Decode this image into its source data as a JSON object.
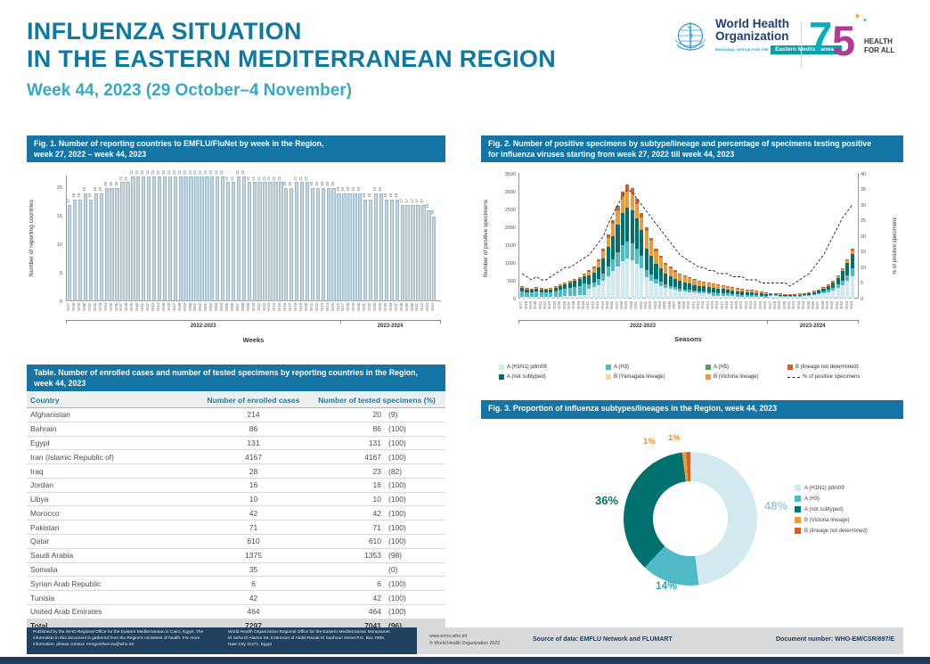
{
  "header": {
    "title_line1": "INFLUENZA SITUATION",
    "title_line2": "IN THE EASTERN MEDITERRANEAN REGION",
    "subtitle": "Week 44, 2023 (29 October–4 November)"
  },
  "logos": {
    "who_name_line1": "World Health",
    "who_name_line2": "Organization",
    "who_office_prefix": "REGIONAL OFFICE FOR THE",
    "who_office_region": "Eastern Mediterranean",
    "anniversary_number_7": "7",
    "anniversary_number_5": "5",
    "sparkle_glyph": "✦",
    "sparkle_glyph2": "✶",
    "anniversary_tagline_line1": "HEALTH",
    "anniversary_tagline_line2": "FOR ALL"
  },
  "fig1": {
    "header_line1": "Fig. 1. Number of reporting countries to EMFLU/FluNet by week in the Region,",
    "header_line2": "week 27, 2022 –  week 44, 2023"
  },
  "fig2": {
    "header_line1": "Fig. 2. Number of positive specimens by subtype/lineage and percentage of specimens testing positive",
    "header_line2": "for influenza viruses starting from week 27, 2022 till week 44, 2023"
  },
  "fig3": {
    "header": "Fig. 3. Proportion of influenza subtypes/lineages in the Region, week 44, 2023"
  },
  "table": {
    "header_line1": "Table. Number of enrolled cases and number of tested specimens by reporting countries in the Region,",
    "header_line2": "week 44, 2023",
    "columns": [
      "Country",
      "Number of enrolled cases",
      "Number of tested specimens (%)"
    ],
    "rows": [
      [
        "Afghanistan",
        "214",
        "20",
        "(9)"
      ],
      [
        "Bahrain",
        "86",
        "86",
        "(100)"
      ],
      [
        "Egypt",
        "131",
        "131",
        "(100)"
      ],
      [
        "Iran (Islamic Republic of)",
        "4167",
        "4167",
        "(100)"
      ],
      [
        "Iraq",
        "28",
        "23",
        "(82)"
      ],
      [
        "Jordan",
        "16",
        "16",
        "(100)"
      ],
      [
        "Libya",
        "10",
        "10",
        "(100)"
      ],
      [
        "Morocco",
        "42",
        "42",
        "(100)"
      ],
      [
        "Pakistan",
        "71",
        "71",
        "(100)"
      ],
      [
        "Qatar",
        "610",
        "610",
        "(100)"
      ],
      [
        "Saudi Arabia",
        "1375",
        "1353",
        "(98)"
      ],
      [
        "Somalia",
        "35",
        "",
        "(0)"
      ],
      [
        "Syrian Arab Republic",
        "6",
        "6",
        "(100)"
      ],
      [
        "Tunisia",
        "42",
        "42",
        "(100)"
      ],
      [
        "United Arab Emirates",
        "464",
        "464",
        "(100)"
      ]
    ],
    "total_row": [
      "Total",
      "7297",
      "7041",
      "(96)"
    ]
  },
  "footer": {
    "published": "Published by the WHO Regional Office for the Eastern Mediterranean in Cairo, Egypt. The information in this document is gathered from the Region's ministries of health. For more information, please contact: emrgoinfluenza@who.int",
    "address": "World Health Organization Regional Office for the Eastern Mediterranean Monazamet El Seha El Alamia Str, Extension of Abdel Razak El Sanhouri Street P.O. Box 7608, Nasr City 11371, Egypt",
    "website": "www.emro.who.int",
    "copyright": "© World Health Organization 2023",
    "source": "Source of data: EMFLU Network and FLUMART",
    "document_number": "Document number: WHO-EM/CSR/697/E"
  },
  "chart_data": [
    {
      "id": "fig1",
      "type": "bar",
      "title": "Fig. 1. Number of reporting countries to EMFLU/FluNet by week in the Region, week 27, 2022 – week 44, 2023",
      "xlabel": "Weeks",
      "ylabel": "Number of reporting countries",
      "ylim": [
        0,
        22
      ],
      "yticks": [
        0,
        5,
        10,
        15,
        20
      ],
      "season_labels": [
        "2022-2023",
        "2023-2024"
      ],
      "season_split_index": 52,
      "categories": [
        "W27",
        "W28",
        "W29",
        "W30",
        "W31",
        "W32",
        "W33",
        "W34",
        "W35",
        "W36",
        "W37",
        "W38",
        "W39",
        "W40",
        "W41",
        "W42",
        "W43",
        "W44",
        "W45",
        "W46",
        "W47",
        "W48",
        "W49",
        "W50",
        "W51",
        "W52",
        "W01",
        "W02",
        "W03",
        "W04",
        "W05",
        "W06",
        "W07",
        "W08",
        "W09",
        "W10",
        "W11",
        "W12",
        "W13",
        "W14",
        "W15",
        "W16",
        "W17",
        "W18",
        "W19",
        "W20",
        "W21",
        "W22",
        "W23",
        "W24",
        "W25",
        "W26",
        "W27",
        "W28",
        "W29",
        "W30",
        "W31",
        "W32",
        "W33",
        "W34",
        "W35",
        "W36",
        "W37",
        "W38",
        "W39",
        "W40",
        "W41",
        "W42",
        "W43",
        "W44"
      ],
      "values": [
        17,
        18,
        18,
        19,
        18,
        19,
        19,
        20,
        20,
        20,
        21,
        21,
        22,
        22,
        22,
        22,
        22,
        22,
        22,
        22,
        22,
        22,
        22,
        22,
        22,
        22,
        22,
        22,
        22,
        22,
        21,
        21,
        22,
        22,
        21,
        21,
        21,
        21,
        21,
        21,
        21,
        20,
        20,
        21,
        21,
        21,
        20,
        20,
        20,
        20,
        20,
        19,
        19,
        19,
        19,
        19,
        18,
        18,
        19,
        19,
        18,
        18,
        18,
        17,
        17,
        17,
        17,
        17,
        16,
        15
      ]
    },
    {
      "id": "fig2",
      "type": "bar",
      "stacked": true,
      "title": "Fig. 2. Number of positive specimens by subtype/lineage and percentage of specimens testing positive for influenza viruses starting from week 27, 2022 till week 44, 2023",
      "xlabel": "Seasons",
      "ylabel_left": "Number of positive specimens",
      "ylabel_right": "% of positive specimens",
      "ylim_left": [
        0,
        3500
      ],
      "yticks_left": [
        0,
        500,
        1000,
        1500,
        2000,
        2500,
        3000,
        3500
      ],
      "ylim_right": [
        0,
        40
      ],
      "yticks_right": [
        0,
        5,
        10,
        15,
        20,
        25,
        30,
        35,
        40
      ],
      "season_labels": [
        "2022-2023",
        "2023-2024"
      ],
      "season_split_index": 52,
      "categories": [
        "W27",
        "W28",
        "W29",
        "W30",
        "W31",
        "W32",
        "W33",
        "W34",
        "W35",
        "W36",
        "W37",
        "W38",
        "W39",
        "W40",
        "W41",
        "W42",
        "W43",
        "W44",
        "W45",
        "W46",
        "W47",
        "W48",
        "W49",
        "W50",
        "W51",
        "W52",
        "W01",
        "W02",
        "W03",
        "W04",
        "W05",
        "W06",
        "W07",
        "W08",
        "W09",
        "W10",
        "W11",
        "W12",
        "W13",
        "W14",
        "W15",
        "W16",
        "W17",
        "W18",
        "W19",
        "W20",
        "W21",
        "W22",
        "W23",
        "W24",
        "W25",
        "W26",
        "W27",
        "W28",
        "W29",
        "W30",
        "W31",
        "W32",
        "W33",
        "W34",
        "W35",
        "W36",
        "W37",
        "W38",
        "W39",
        "W40",
        "W41",
        "W42",
        "W43",
        "W44"
      ],
      "series": [
        {
          "name": "A (H1N1) pdm09",
          "color": "#d2e9f0",
          "values": [
            55,
            45,
            40,
            50,
            45,
            40,
            45,
            55,
            60,
            70,
            75,
            85,
            90,
            105,
            280,
            315,
            385,
            490,
            630,
            770,
            910,
            1050,
            1120,
            1085,
            980,
            840,
            600,
            510,
            420,
            360,
            300,
            270,
            240,
            210,
            195,
            180,
            165,
            150,
            145,
            135,
            85,
            80,
            75,
            70,
            65,
            60,
            55,
            50,
            50,
            45,
            40,
            35,
            70,
            65,
            65,
            60,
            55,
            60,
            65,
            70,
            80,
            100,
            117,
            144,
            180,
            225,
            293,
            383,
            495,
            630
          ]
        },
        {
          "name": "A (H3)",
          "color": "#4fbac6",
          "values": [
            155,
            135,
            125,
            145,
            135,
            125,
            135,
            155,
            180,
            200,
            225,
            245,
            270,
            315,
            120,
            135,
            165,
            210,
            270,
            330,
            390,
            450,
            480,
            465,
            420,
            360,
            200,
            170,
            140,
            120,
            100,
            90,
            80,
            70,
            65,
            60,
            55,
            50,
            50,
            45,
            85,
            80,
            75,
            70,
            65,
            60,
            55,
            50,
            50,
            45,
            40,
            35,
            25,
            25,
            20,
            20,
            18,
            20,
            20,
            20,
            25,
            33,
            39,
            48,
            60,
            75,
            97,
            127,
            165,
            210
          ]
        },
        {
          "name": "A (not subtyped)",
          "color": "#00716e",
          "values": [
            105,
            90,
            85,
            95,
            90,
            85,
            90,
            105,
            120,
            135,
            150,
            165,
            180,
            210,
            240,
            270,
            330,
            420,
            540,
            660,
            780,
            900,
            960,
            930,
            840,
            720,
            600,
            510,
            420,
            360,
            300,
            270,
            240,
            210,
            195,
            180,
            165,
            150,
            145,
            135,
            125,
            120,
            115,
            105,
            95,
            90,
            85,
            80,
            70,
            65,
            60,
            55,
            50,
            45,
            40,
            40,
            35,
            40,
            40,
            45,
            55,
            65,
            78,
            96,
            120,
            150,
            195,
            255,
            330,
            420
          ]
        },
        {
          "name": "A (H5)",
          "color": "#55a054",
          "values": [],
          "note": "negligible (~0) in all weeks"
        },
        {
          "name": "B (Yamagata lineage)",
          "color": "#f2d9a7",
          "values": [],
          "note": "negligible (~0) in all weeks"
        },
        {
          "name": "B (Victoria lineage)",
          "color": "#e89c3f",
          "values": [
            20,
            15,
            15,
            15,
            15,
            15,
            15,
            20,
            20,
            25,
            25,
            30,
            30,
            35,
            120,
            135,
            165,
            210,
            270,
            330,
            390,
            450,
            480,
            465,
            420,
            360,
            500,
            425,
            350,
            300,
            250,
            225,
            200,
            175,
            160,
            150,
            135,
            125,
            120,
            115,
            105,
            100,
            95,
            90,
            80,
            75,
            70,
            65,
            60,
            55,
            50,
            45,
            10,
            10,
            10,
            7,
            9,
            7,
            10,
            10,
            13,
            15,
            18,
            22,
            28,
            35,
            45,
            60,
            77,
            98
          ]
        },
        {
          "name": "B (lineage not determined)",
          "color": "#d2622a",
          "values": [
            15,
            15,
            15,
            15,
            15,
            15,
            15,
            15,
            20,
            20,
            25,
            25,
            30,
            35,
            40,
            45,
            55,
            70,
            90,
            110,
            130,
            150,
            160,
            155,
            140,
            120,
            100,
            85,
            70,
            60,
            50,
            45,
            40,
            35,
            35,
            30,
            30,
            25,
            20,
            20,
            20,
            20,
            20,
            15,
            15,
            15,
            15,
            15,
            10,
            10,
            10,
            10,
            5,
            5,
            5,
            3,
            3,
            3,
            5,
            5,
            7,
            7,
            8,
            10,
            12,
            15,
            20,
            25,
            33,
            42
          ]
        }
      ],
      "line_series": {
        "name": "% of positive specimens",
        "style": "dashed",
        "color": "#222222",
        "values": [
          8,
          7,
          6,
          7,
          6,
          6,
          7,
          8,
          9,
          10,
          10,
          11,
          12,
          13,
          14,
          16,
          18,
          20,
          24,
          27,
          30,
          33,
          35,
          34,
          32,
          30,
          28,
          26,
          24,
          22,
          20,
          18,
          16,
          14,
          13,
          12,
          11,
          10,
          10,
          9,
          9,
          8,
          8,
          8,
          7,
          7,
          7,
          6,
          6,
          6,
          5,
          5,
          5,
          5,
          5,
          5,
          4,
          5,
          6,
          7,
          8,
          10,
          12,
          14,
          17,
          20,
          23,
          26,
          28,
          30
        ]
      }
    },
    {
      "id": "fig3",
      "type": "pie",
      "donut": true,
      "title": "Fig. 3. Proportion of influenza subtypes/lineages in the Region, week 44, 2023",
      "slices": [
        {
          "label": "A (H1N1) pdm09",
          "value": 48,
          "color": "#d2e9f0",
          "label_color": "#a9c8dc"
        },
        {
          "label": "A (H3)",
          "value": 14,
          "color": "#4fbac6",
          "label_color": "#2fa3b5"
        },
        {
          "label": "A (not subtyped)",
          "value": 36,
          "color": "#00716e",
          "label_color": "#00716e"
        },
        {
          "label": "B (Victoria lineage)",
          "value": 1,
          "color": "#e89c3f",
          "label_color": "#dd8f2d"
        },
        {
          "label": "B (lineage not determined)",
          "value": 1,
          "color": "#d2622a",
          "label_color": "#dd8f2d"
        }
      ]
    }
  ]
}
